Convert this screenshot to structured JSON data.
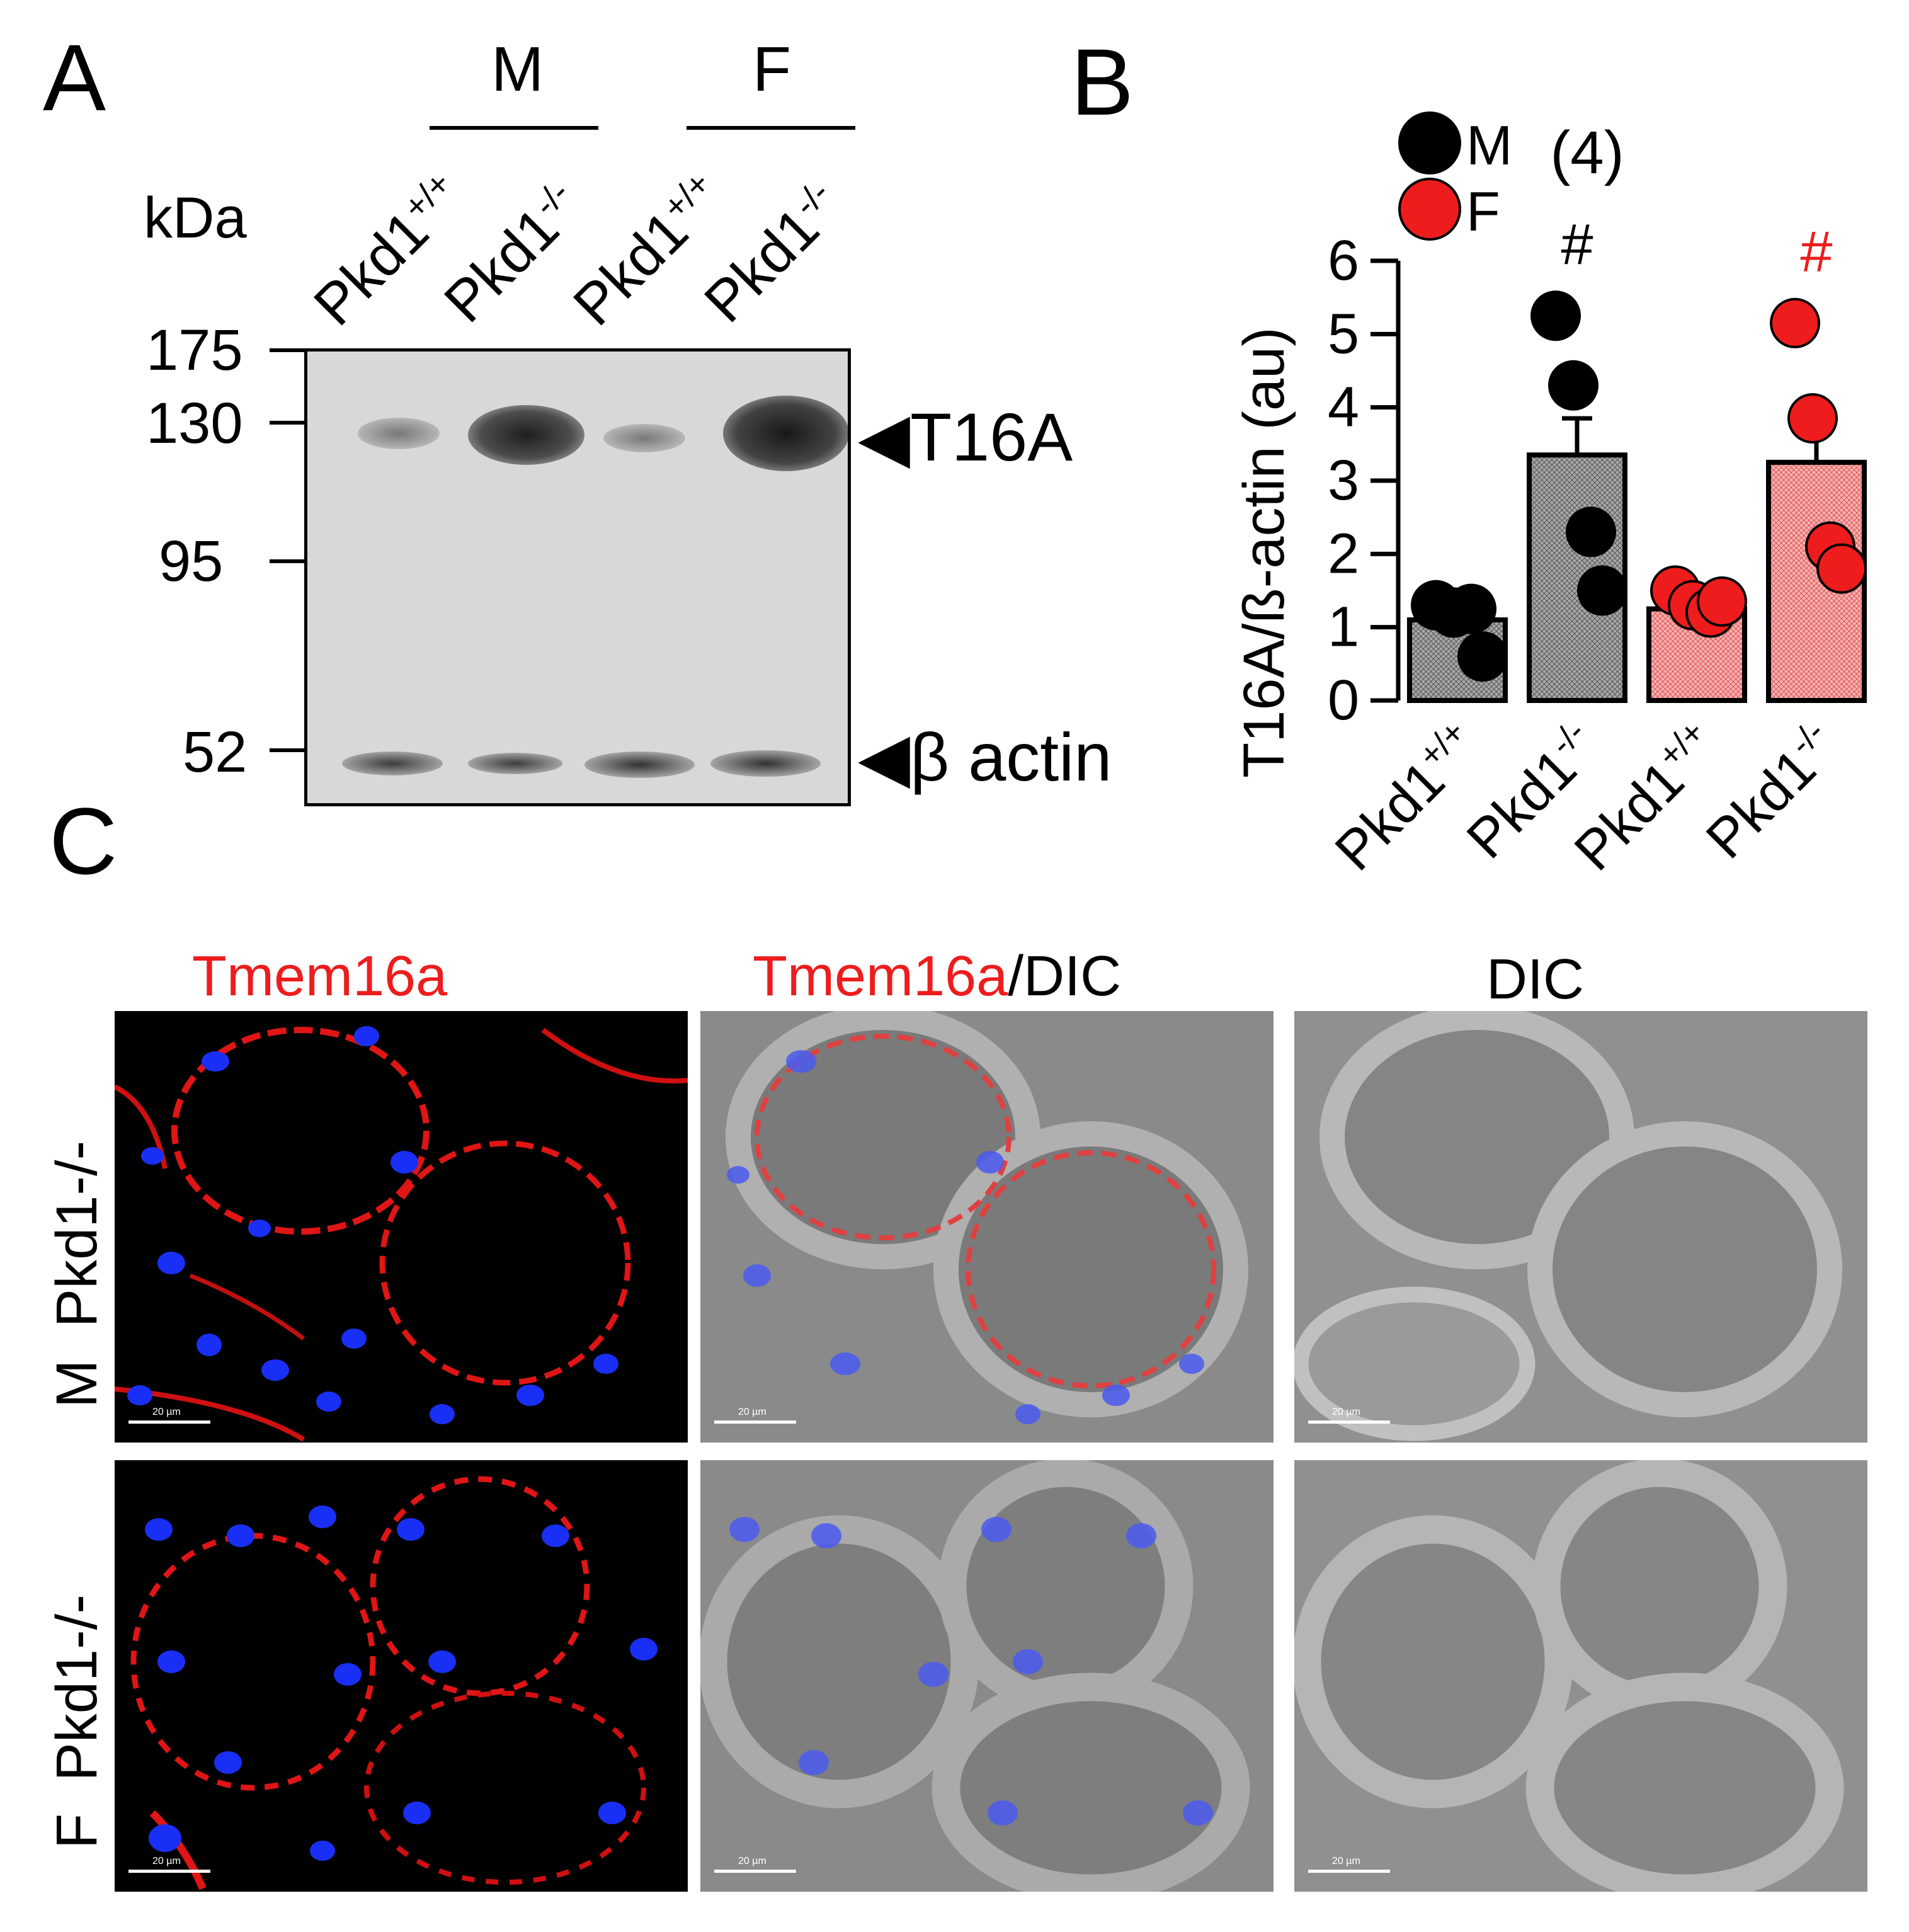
{
  "panelA": {
    "letter": "A",
    "kda_label": "kDa",
    "group_M": "M",
    "group_F": "F",
    "lane_labels": [
      {
        "base": "Pkd1",
        "sup": "+/+"
      },
      {
        "base": "Pkd1",
        "sup": "-/-"
      },
      {
        "base": "Pkd1",
        "sup": "+/+"
      },
      {
        "base": "Pkd1",
        "sup": "-/-"
      }
    ],
    "markers": [
      "175",
      "130",
      "95",
      "52"
    ],
    "band_label_t16a": "T16A",
    "band_label_actin": "β actin",
    "band_intensity_t16a": [
      0.25,
      0.85,
      0.3,
      0.95
    ],
    "band_intensity_actin": [
      0.6,
      0.55,
      0.65,
      0.65
    ]
  },
  "panelB": {
    "letter": "B",
    "legend": [
      {
        "label": "M",
        "color": "#000000"
      },
      {
        "label": "F",
        "color": "#ee1c1c"
      }
    ],
    "n_label": "(4)",
    "sig_mark": "#",
    "chart_data": {
      "type": "bar",
      "ylabel": "T16A/ß-actin (au)",
      "ylim": [
        0,
        6
      ],
      "yticks": [
        "0",
        "1",
        "2",
        "3",
        "4",
        "5",
        "6"
      ],
      "categories": [
        {
          "base": "Pkd1",
          "sup": "+/+"
        },
        {
          "base": "Pkd1",
          "sup": "-/-"
        },
        {
          "base": "Pkd1",
          "sup": "+/+"
        },
        {
          "base": "Pkd1",
          "sup": "-/-"
        }
      ],
      "values": [
        1.1,
        3.35,
        1.25,
        3.25
      ],
      "errors": [
        0.15,
        0.5,
        0.15,
        0.4
      ],
      "bar_colors": [
        "#9a9a9a",
        "#9a9a9a",
        "#f29a9a",
        "#f29a9a"
      ],
      "point_colors": [
        "#000000",
        "#000000",
        "#ee1c1c",
        "#ee1c1c"
      ],
      "points": [
        [
          1.3,
          1.2,
          1.25,
          0.6
        ],
        [
          5.25,
          4.3,
          2.3,
          1.5
        ],
        [
          1.5,
          1.3,
          1.2,
          1.35
        ],
        [
          5.15,
          3.85,
          2.1,
          1.8
        ]
      ],
      "sig_colors": [
        null,
        "#000000",
        null,
        "#ee1c1c"
      ]
    }
  },
  "panelC": {
    "letter": "C",
    "col_titles": [
      {
        "parts": [
          {
            "text": "Tmem16a",
            "color": "#ee1c1c"
          }
        ]
      },
      {
        "parts": [
          {
            "text": "Tmem16a",
            "color": "#ee1c1c"
          },
          {
            "text": "/DIC",
            "color": "#000000"
          }
        ]
      },
      {
        "parts": [
          {
            "text": "DIC",
            "color": "#000000"
          }
        ]
      }
    ],
    "row_labels": [
      "M  Pkd1-/-",
      "F  Pkd1-/-"
    ],
    "scale_text": "20 µm"
  }
}
